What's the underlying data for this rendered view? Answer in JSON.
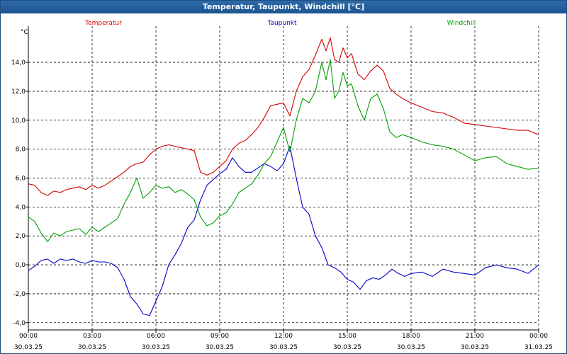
{
  "window": {
    "title": "Temperatur, Taupunkt, Windchill [°C]"
  },
  "chart_data": {
    "type": "line",
    "title": "Temperatur, Taupunkt, Windchill [°C]",
    "ylabel": "°C",
    "xlabel": "",
    "ylim": [
      -4.5,
      16.5
    ],
    "xlim": [
      0,
      24
    ],
    "grid": true,
    "yticks": [
      "-4,0",
      "-2,0",
      "0,0",
      "2,0",
      "4,0",
      "6,0",
      "8,0",
      "10,0",
      "12,0",
      "14,0"
    ],
    "ytick_values": [
      -4,
      -2,
      0,
      2,
      4,
      6,
      8,
      10,
      12,
      14
    ],
    "xticks": [
      {
        "time": "00:00",
        "date": "30.03.25"
      },
      {
        "time": "03:00",
        "date": "30.03.25"
      },
      {
        "time": "06:00",
        "date": "30.03.25"
      },
      {
        "time": "09:00",
        "date": "30.03.25"
      },
      {
        "time": "12:00",
        "date": "30.03.25"
      },
      {
        "time": "15:00",
        "date": "30.03.25"
      },
      {
        "time": "18:00",
        "date": "30.03.25"
      },
      {
        "time": "21:00",
        "date": "30.03.25"
      },
      {
        "time": "00:00",
        "date": "31.03.25"
      }
    ],
    "series": [
      {
        "name": "Temperatur",
        "color": "#d40000",
        "x": [
          0,
          0.3,
          0.6,
          0.9,
          1.2,
          1.5,
          1.8,
          2.1,
          2.4,
          2.7,
          3.0,
          3.3,
          3.6,
          3.9,
          4.2,
          4.5,
          4.8,
          5.1,
          5.4,
          5.7,
          6.0,
          6.3,
          6.6,
          6.9,
          7.2,
          7.5,
          7.8,
          8.1,
          8.4,
          8.7,
          9.0,
          9.3,
          9.6,
          9.9,
          10.2,
          10.5,
          10.8,
          11.1,
          11.4,
          11.7,
          12.0,
          12.3,
          12.6,
          12.9,
          13.2,
          13.5,
          13.8,
          14.0,
          14.2,
          14.4,
          14.6,
          14.8,
          15.0,
          15.2,
          15.5,
          15.8,
          16.1,
          16.4,
          16.7,
          17.0,
          17.3,
          17.6,
          18.0,
          18.5,
          19.0,
          19.5,
          20.0,
          20.5,
          21.0,
          21.5,
          22.0,
          22.5,
          23.0,
          23.5,
          24.0
        ],
        "values": [
          5.6,
          5.5,
          5.0,
          4.8,
          5.1,
          5.0,
          5.2,
          5.3,
          5.4,
          5.2,
          5.5,
          5.3,
          5.5,
          5.8,
          6.1,
          6.4,
          6.8,
          7.0,
          7.1,
          7.6,
          8.0,
          8.2,
          8.3,
          8.2,
          8.1,
          8.0,
          7.9,
          6.4,
          6.2,
          6.4,
          6.8,
          7.2,
          8.0,
          8.4,
          8.6,
          9.0,
          9.5,
          10.2,
          11.0,
          11.1,
          11.2,
          10.3,
          12.0,
          13.0,
          13.5,
          14.5,
          15.6,
          14.8,
          15.7,
          14.2,
          14.0,
          15.0,
          14.3,
          14.6,
          13.2,
          12.8,
          13.4,
          13.8,
          13.4,
          12.2,
          11.8,
          11.5,
          11.2,
          10.9,
          10.6,
          10.5,
          10.2,
          9.8,
          9.7,
          9.6,
          9.5,
          9.4,
          9.3,
          9.3,
          9.0
        ]
      },
      {
        "name": "Taupunkt",
        "color": "#0000c8",
        "x": [
          0,
          0.3,
          0.6,
          0.9,
          1.2,
          1.5,
          1.8,
          2.1,
          2.4,
          2.7,
          3.0,
          3.3,
          3.6,
          3.9,
          4.2,
          4.5,
          4.8,
          5.1,
          5.4,
          5.7,
          6.0,
          6.3,
          6.6,
          6.9,
          7.2,
          7.5,
          7.8,
          8.1,
          8.4,
          8.7,
          9.0,
          9.3,
          9.6,
          9.9,
          10.2,
          10.5,
          10.8,
          11.1,
          11.4,
          11.7,
          12.0,
          12.3,
          12.6,
          12.9,
          13.2,
          13.5,
          13.8,
          14.1,
          14.4,
          14.7,
          15.0,
          15.3,
          15.6,
          15.9,
          16.2,
          16.5,
          16.8,
          17.1,
          17.4,
          17.7,
          18.0,
          18.5,
          19.0,
          19.5,
          20.0,
          20.5,
          21.0,
          21.5,
          22.0,
          22.5,
          23.0,
          23.5,
          24.0
        ],
        "values": [
          -0.4,
          -0.1,
          0.3,
          0.4,
          0.1,
          0.4,
          0.3,
          0.4,
          0.2,
          0.1,
          0.3,
          0.2,
          0.2,
          0.1,
          -0.2,
          -1.0,
          -2.2,
          -2.7,
          -3.4,
          -3.5,
          -2.5,
          -1.5,
          0.0,
          0.7,
          1.5,
          2.6,
          3.1,
          4.5,
          5.5,
          5.9,
          6.3,
          6.6,
          7.4,
          6.8,
          6.4,
          6.4,
          6.7,
          7.0,
          6.8,
          6.5,
          7.0,
          8.2,
          6.0,
          4.0,
          3.5,
          2.0,
          1.2,
          0.0,
          -0.2,
          -0.5,
          -1.0,
          -1.2,
          -1.7,
          -1.1,
          -0.9,
          -1.0,
          -0.7,
          -0.3,
          -0.6,
          -0.8,
          -0.6,
          -0.5,
          -0.8,
          -0.3,
          -0.5,
          -0.6,
          -0.7,
          -0.2,
          0.0,
          -0.2,
          -0.3,
          -0.6,
          0.0
        ]
      },
      {
        "name": "Windchill",
        "color": "#00a000",
        "x": [
          0,
          0.3,
          0.6,
          0.9,
          1.2,
          1.5,
          1.8,
          2.1,
          2.4,
          2.7,
          3.0,
          3.3,
          3.6,
          3.9,
          4.2,
          4.5,
          4.8,
          5.1,
          5.4,
          5.7,
          6.0,
          6.3,
          6.6,
          6.9,
          7.2,
          7.5,
          7.8,
          8.1,
          8.4,
          8.7,
          9.0,
          9.3,
          9.6,
          9.9,
          10.2,
          10.5,
          10.8,
          11.1,
          11.4,
          11.7,
          12.0,
          12.3,
          12.6,
          12.9,
          13.2,
          13.5,
          13.8,
          14.0,
          14.2,
          14.4,
          14.6,
          14.8,
          15.0,
          15.2,
          15.5,
          15.8,
          16.1,
          16.4,
          16.7,
          17.0,
          17.3,
          17.6,
          18.0,
          18.5,
          19.0,
          19.5,
          20.0,
          20.5,
          21.0,
          21.5,
          22.0,
          22.5,
          23.0,
          23.5,
          24.0
        ],
        "values": [
          3.3,
          3.0,
          2.2,
          1.6,
          2.2,
          2.0,
          2.3,
          2.4,
          2.5,
          2.1,
          2.6,
          2.3,
          2.6,
          2.9,
          3.2,
          4.2,
          5.0,
          6.0,
          4.6,
          5.0,
          5.5,
          5.3,
          5.4,
          5.0,
          5.2,
          4.9,
          4.5,
          3.3,
          2.7,
          2.9,
          3.4,
          3.6,
          4.2,
          5.0,
          5.3,
          5.6,
          6.2,
          7.0,
          7.5,
          8.5,
          9.5,
          7.8,
          10.0,
          11.5,
          11.2,
          12.0,
          14.0,
          12.8,
          14.2,
          11.5,
          12.0,
          13.3,
          12.4,
          12.5,
          11.0,
          10.0,
          11.5,
          11.8,
          10.8,
          9.2,
          8.8,
          9.0,
          8.8,
          8.5,
          8.3,
          8.2,
          8.0,
          7.6,
          7.2,
          7.4,
          7.5,
          7.0,
          6.8,
          6.6,
          6.7
        ]
      }
    ]
  }
}
